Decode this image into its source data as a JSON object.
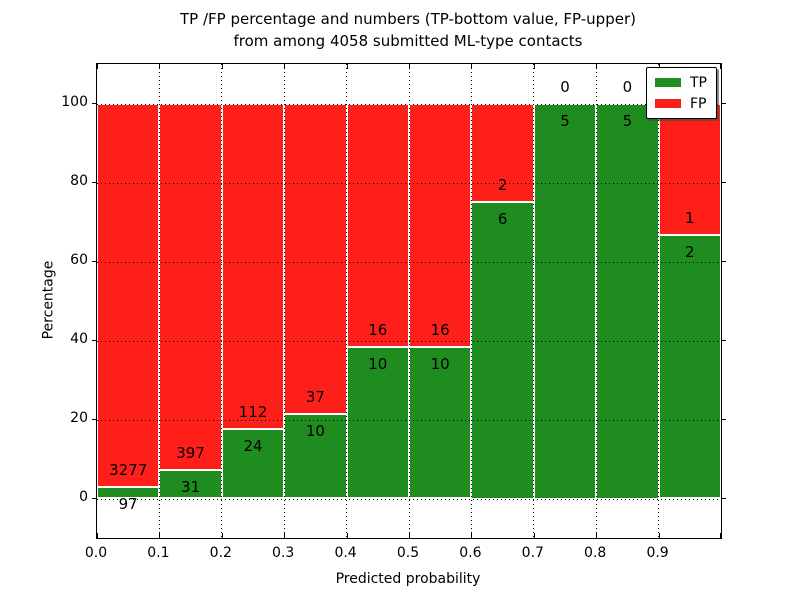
{
  "title": {
    "line1": "TP /FP percentage and numbers (TP-bottom value, FP-upper)",
    "line2": "from among 4058 submitted ML-type contacts"
  },
  "axes": {
    "xlabel": "Predicted probability",
    "ylabel": "Percentage"
  },
  "legend": {
    "items": [
      {
        "label": "TP",
        "color": "#1e8c1e"
      },
      {
        "label": "FP",
        "color": "#ff1f1a"
      }
    ]
  },
  "colors": {
    "tp": "#1e8c1e",
    "fp": "#ff1f1a",
    "grid": "#000000",
    "background": "#ffffff"
  },
  "chart_data": {
    "type": "bar",
    "stacked": true,
    "title": "TP /FP percentage and numbers (TP-bottom value, FP-upper) from among 4058 submitted ML-type contacts",
    "xlabel": "Predicted probability",
    "ylabel": "Percentage",
    "total_contacts": 4058,
    "xlim": [
      0.0,
      1.0
    ],
    "ylim": [
      -10,
      110
    ],
    "grid": true,
    "legend_position": "upper right",
    "xticks": [
      "0.0",
      "0.1",
      "0.2",
      "0.3",
      "0.4",
      "0.5",
      "0.6",
      "0.7",
      "0.8",
      "0.9"
    ],
    "yticks": [
      0,
      20,
      40,
      60,
      80,
      100
    ],
    "bins": [
      {
        "x0": 0.0,
        "x1": 0.1,
        "tp_count": 97,
        "fp_count": 3277,
        "tp_pct": 2.87,
        "fp_pct": 97.13
      },
      {
        "x0": 0.1,
        "x1": 0.2,
        "tp_count": 31,
        "fp_count": 397,
        "tp_pct": 7.24,
        "fp_pct": 92.76
      },
      {
        "x0": 0.2,
        "x1": 0.3,
        "tp_count": 24,
        "fp_count": 112,
        "tp_pct": 17.65,
        "fp_pct": 82.35
      },
      {
        "x0": 0.3,
        "x1": 0.4,
        "tp_count": 10,
        "fp_count": 37,
        "tp_pct": 21.28,
        "fp_pct": 78.72
      },
      {
        "x0": 0.4,
        "x1": 0.5,
        "tp_count": 10,
        "fp_count": 16,
        "tp_pct": 38.46,
        "fp_pct": 61.54
      },
      {
        "x0": 0.5,
        "x1": 0.6,
        "tp_count": 10,
        "fp_count": 16,
        "tp_pct": 38.46,
        "fp_pct": 61.54
      },
      {
        "x0": 0.6,
        "x1": 0.7,
        "tp_count": 6,
        "fp_count": 2,
        "tp_pct": 75.0,
        "fp_pct": 25.0
      },
      {
        "x0": 0.7,
        "x1": 0.8,
        "tp_count": 5,
        "fp_count": 0,
        "tp_pct": 100.0,
        "fp_pct": 0.0
      },
      {
        "x0": 0.8,
        "x1": 0.9,
        "tp_count": 5,
        "fp_count": 0,
        "tp_pct": 100.0,
        "fp_pct": 0.0
      },
      {
        "x0": 0.9,
        "x1": 1.0,
        "tp_count": 2,
        "fp_count": 1,
        "tp_pct": 66.67,
        "fp_pct": 33.33
      }
    ]
  }
}
